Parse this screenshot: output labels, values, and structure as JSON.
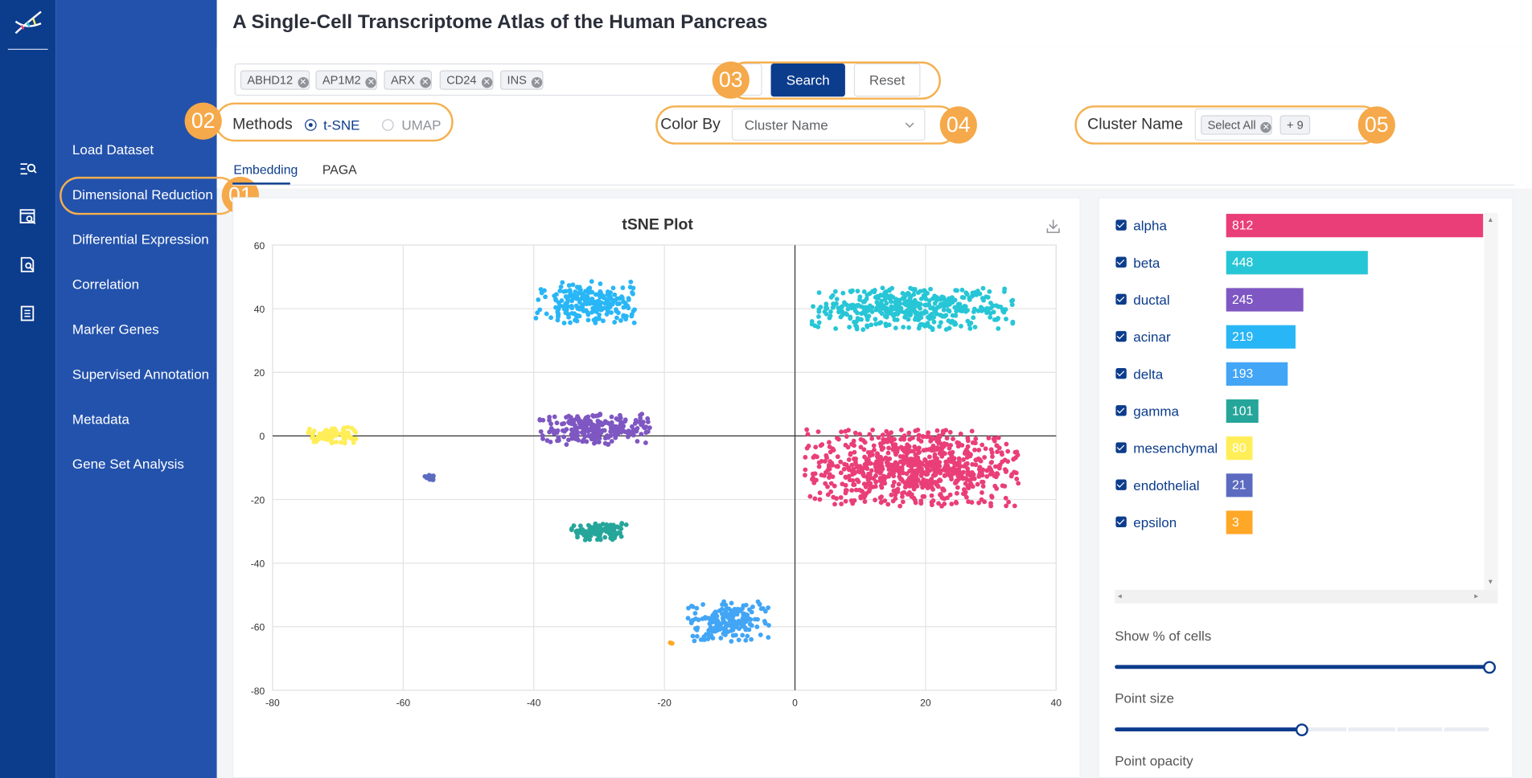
{
  "header": {
    "title": "A Single-Cell Transcriptome Atlas of the Human Pancreas"
  },
  "sidebar": {
    "items": [
      {
        "label": "Load Dataset"
      },
      {
        "label": "Dimensional Reduction"
      },
      {
        "label": "Differential Expression"
      },
      {
        "label": "Correlation"
      },
      {
        "label": "Marker Genes"
      },
      {
        "label": "Supervised Annotation"
      },
      {
        "label": "Metadata"
      },
      {
        "label": "Gene Set Analysis"
      }
    ],
    "active": "Dimensional Reduction"
  },
  "genes": {
    "tags": [
      "ABHD12",
      "AP1M2",
      "ARX",
      "CD24",
      "INS"
    ],
    "search_label": "Search",
    "reset_label": "Reset"
  },
  "methods": {
    "label": "Methods",
    "options": [
      "t-SNE",
      "UMAP"
    ],
    "selected": "t-SNE"
  },
  "color_by": {
    "label": "Color By",
    "value": "Cluster Name"
  },
  "cluster_name": {
    "label": "Cluster Name",
    "tag": "Select All",
    "more": "+ 9"
  },
  "badges": [
    "01",
    "02",
    "03",
    "04",
    "05"
  ],
  "tabs": [
    {
      "label": "Embedding",
      "active": true
    },
    {
      "label": "PAGA",
      "active": false
    }
  ],
  "cell_types": [
    {
      "name": "alpha",
      "count": "812",
      "color": "#ea3e78"
    },
    {
      "name": "beta",
      "count": "448",
      "color": "#27c6d6"
    },
    {
      "name": "ductal",
      "count": "245",
      "color": "#7e57c2"
    },
    {
      "name": "acinar",
      "count": "219",
      "color": "#29b6f6"
    },
    {
      "name": "delta",
      "count": "193",
      "color": "#42a5f5"
    },
    {
      "name": "gamma",
      "count": "101",
      "color": "#26a69a"
    },
    {
      "name": "mesenchymal",
      "count": "80",
      "color": "#ffee58"
    },
    {
      "name": "endothelial",
      "count": "21",
      "color": "#5c6bc0"
    },
    {
      "name": "epsilon",
      "count": "3",
      "color": "#ffa726"
    }
  ],
  "sliders": {
    "percent_label": "Show % of cells",
    "percent_value": 1.0,
    "point_size_label": "Point size",
    "point_size_value": 0.5,
    "point_opacity_label": "Point opacity"
  },
  "chart_data": {
    "type": "scatter",
    "title": "tSNE Plot",
    "xlim": [
      -80,
      40
    ],
    "ylim": [
      -80,
      60
    ],
    "x_ticks": [
      "-80",
      "-60",
      "-40",
      "-20",
      "0",
      "20",
      "40"
    ],
    "y_ticks": [
      "60",
      "40",
      "20",
      "0",
      "-20",
      "-40",
      "-60",
      "-80"
    ],
    "grid": true,
    "clusters": [
      {
        "cell_type": "alpha",
        "center": [
          18,
          -10
        ],
        "spread": [
          15,
          11
        ],
        "n": 812
      },
      {
        "cell_type": "beta",
        "center": [
          18,
          40
        ],
        "spread": [
          14,
          6
        ],
        "n": 448
      },
      {
        "cell_type": "ductal",
        "center": [
          -31,
          2
        ],
        "spread": [
          8,
          4.5
        ],
        "n": 245
      },
      {
        "cell_type": "acinar",
        "center": [
          -32,
          42
        ],
        "spread": [
          7,
          6
        ],
        "n": 219
      },
      {
        "cell_type": "delta",
        "center": [
          -10,
          -58
        ],
        "spread": [
          6,
          6
        ],
        "n": 193
      },
      {
        "cell_type": "gamma",
        "center": [
          -30,
          -30
        ],
        "spread": [
          4,
          2.5
        ],
        "n": 101
      },
      {
        "cell_type": "mesenchymal",
        "center": [
          -71,
          0
        ],
        "spread": [
          3.5,
          2.5
        ],
        "n": 80
      },
      {
        "cell_type": "endothelial",
        "center": [
          -56,
          -13
        ],
        "spread": [
          0.8,
          0.8
        ],
        "n": 21
      },
      {
        "cell_type": "epsilon",
        "center": [
          -19,
          -65
        ],
        "spread": [
          0.4,
          0.4
        ],
        "n": 3
      }
    ]
  }
}
